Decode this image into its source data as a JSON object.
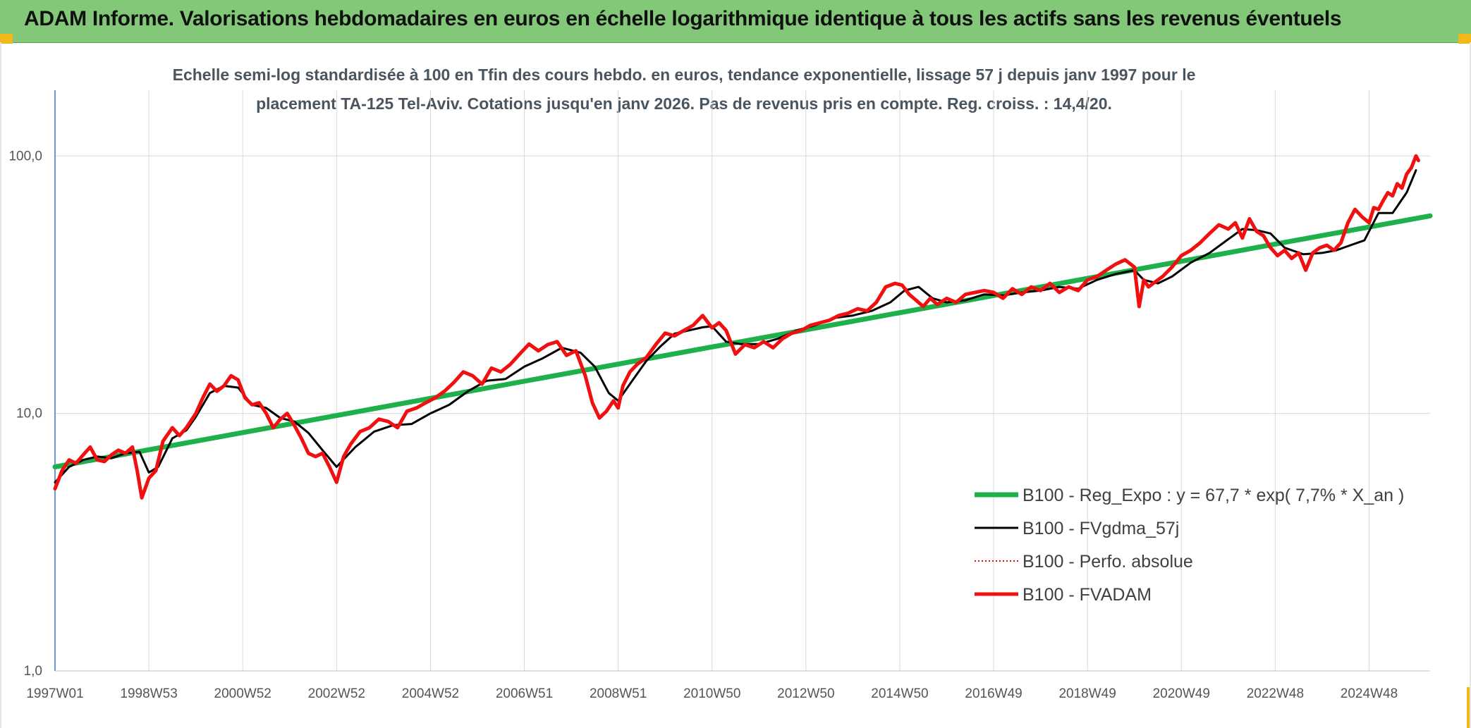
{
  "header": {
    "title": "ADAM Informe. Valorisations hebdomadaires en euros en échelle logarithmique identique à tous les actifs sans les revenus éventuels"
  },
  "colors": {
    "header_bg": "#82c878",
    "accent_corner": "#f2b81a",
    "regression": "#1eb04a",
    "smoothed": "#000000",
    "absolute": "#e01010",
    "fvadam": "#f01010",
    "grid": "#d9d9d9"
  },
  "chart_data": {
    "type": "line",
    "subtitle_lines": [
      "Echelle semi-log standardisée à 100 en Tfin des cours hebdo. en euros, tendance exponentielle, lissage 57 j depuis janv 1997 pour le",
      "placement TA-125 Tel-Aviv. Cotations jusqu'en janv 2026. Pas de revenus pris en compte. Reg. croiss. : 14,4/20."
    ],
    "y_scale": "log",
    "ylim": [
      1,
      180
    ],
    "xlim": [
      1997.0,
      2026.3
    ],
    "grid": true,
    "legend_placement": "bottom-right",
    "yticks": [
      {
        "value": 1,
        "label": "1,0"
      },
      {
        "value": 10,
        "label": "10,0"
      },
      {
        "value": 100,
        "label": "100,0"
      }
    ],
    "xticks": [
      {
        "value": 1997.0,
        "label": "1997W01"
      },
      {
        "value": 1999.0,
        "label": "1998W53"
      },
      {
        "value": 2001.0,
        "label": "2000W52"
      },
      {
        "value": 2003.0,
        "label": "2002W52"
      },
      {
        "value": 2005.0,
        "label": "2004W52"
      },
      {
        "value": 2007.0,
        "label": "2006W51"
      },
      {
        "value": 2009.0,
        "label": "2008W51"
      },
      {
        "value": 2011.0,
        "label": "2010W50"
      },
      {
        "value": 2013.0,
        "label": "2012W50"
      },
      {
        "value": 2015.0,
        "label": "2014W50"
      },
      {
        "value": 2017.0,
        "label": "2016W49"
      },
      {
        "value": 2019.0,
        "label": "2018W49"
      },
      {
        "value": 2021.0,
        "label": "2020W49"
      },
      {
        "value": 2023.0,
        "label": "2022W48"
      },
      {
        "value": 2025.0,
        "label": "2024W48"
      }
    ],
    "series": [
      {
        "name": "B100 - Reg_Expo : y = 67,7 * exp( 7,7% *  X_an )",
        "style": "regression",
        "x": [
          1997.0,
          2026.3
        ],
        "y": [
          6.2,
          58.5
        ]
      },
      {
        "name": "B100 - FVgdma_57j",
        "style": "smoothed",
        "x": [
          1997.0,
          1997.3,
          1997.6,
          1997.9,
          1998.2,
          1998.5,
          1998.8,
          1999.0,
          1999.2,
          1999.5,
          1999.8,
          2000.0,
          2000.3,
          2000.6,
          2000.9,
          2001.2,
          2001.5,
          2001.8,
          2002.1,
          2002.4,
          2002.7,
          2003.0,
          2003.4,
          2003.8,
          2004.2,
          2004.6,
          2005.0,
          2005.4,
          2005.8,
          2006.2,
          2006.6,
          2007.0,
          2007.4,
          2007.8,
          2008.2,
          2008.5,
          2008.8,
          2009.0,
          2009.3,
          2009.6,
          2009.9,
          2010.2,
          2010.5,
          2010.8,
          2011.0,
          2011.3,
          2011.6,
          2012.0,
          2012.4,
          2012.8,
          2013.2,
          2013.6,
          2014.0,
          2014.4,
          2014.8,
          2015.1,
          2015.4,
          2015.7,
          2016.0,
          2016.4,
          2016.8,
          2017.2,
          2017.6,
          2018.0,
          2018.4,
          2018.8,
          2019.2,
          2019.6,
          2020.0,
          2020.2,
          2020.5,
          2020.8,
          2021.2,
          2021.6,
          2022.0,
          2022.3,
          2022.6,
          2022.9,
          2023.2,
          2023.6,
          2024.0,
          2024.3,
          2024.6,
          2024.9,
          2025.2,
          2025.5,
          2025.8,
          2026.0
        ],
        "y": [
          5.4,
          6.2,
          6.6,
          6.8,
          6.7,
          7.0,
          7.1,
          5.9,
          6.2,
          8.0,
          8.6,
          9.7,
          12.0,
          12.8,
          12.6,
          10.8,
          10.5,
          9.6,
          9.3,
          8.4,
          7.2,
          6.2,
          7.4,
          8.5,
          9.0,
          9.1,
          10.0,
          10.8,
          12.2,
          13.4,
          13.6,
          15.2,
          16.4,
          18.0,
          17.2,
          15.2,
          12.0,
          11.2,
          13.4,
          16.0,
          18.2,
          20.4,
          21.0,
          21.6,
          21.8,
          19.0,
          18.6,
          18.6,
          19.5,
          21.0,
          22.0,
          23.5,
          24.0,
          25.0,
          27.0,
          30.0,
          31.0,
          28.0,
          27.0,
          27.5,
          29.0,
          28.7,
          29.5,
          30.0,
          31.0,
          30.5,
          33.0,
          34.8,
          36.0,
          33.0,
          32.0,
          34.0,
          38.5,
          42.0,
          47.5,
          52.0,
          51.5,
          50.0,
          44.0,
          41.5,
          42.0,
          43.0,
          45.0,
          47.0,
          60.0,
          60.0,
          72.0,
          88.0
        ]
      },
      {
        "name": "B100 - Perfo. absolue",
        "style": "dotted",
        "x": [],
        "y": []
      },
      {
        "name": "B100 - FVADAM",
        "style": "fvadam",
        "x": [
          1997.0,
          1997.15,
          1997.3,
          1997.45,
          1997.6,
          1997.75,
          1997.9,
          1998.05,
          1998.2,
          1998.35,
          1998.5,
          1998.65,
          1998.75,
          1998.85,
          1999.0,
          1999.15,
          1999.3,
          1999.5,
          1999.65,
          1999.8,
          2000.0,
          2000.15,
          2000.3,
          2000.45,
          2000.6,
          2000.75,
          2000.9,
          2001.05,
          2001.2,
          2001.35,
          2001.5,
          2001.65,
          2001.8,
          2001.95,
          2002.1,
          2002.25,
          2002.4,
          2002.55,
          2002.7,
          2002.85,
          2003.0,
          2003.15,
          2003.3,
          2003.5,
          2003.7,
          2003.9,
          2004.1,
          2004.3,
          2004.5,
          2004.7,
          2004.9,
          2005.1,
          2005.3,
          2005.5,
          2005.7,
          2005.9,
          2006.1,
          2006.3,
          2006.5,
          2006.7,
          2006.9,
          2007.1,
          2007.3,
          2007.5,
          2007.7,
          2007.9,
          2008.1,
          2008.3,
          2008.45,
          2008.6,
          2008.75,
          2008.9,
          2009.0,
          2009.1,
          2009.25,
          2009.4,
          2009.6,
          2009.8,
          2010.0,
          2010.2,
          2010.4,
          2010.6,
          2010.8,
          2011.0,
          2011.15,
          2011.3,
          2011.5,
          2011.7,
          2011.9,
          2012.1,
          2012.3,
          2012.5,
          2012.7,
          2012.9,
          2013.1,
          2013.3,
          2013.5,
          2013.7,
          2013.9,
          2014.1,
          2014.3,
          2014.5,
          2014.7,
          2014.9,
          2015.05,
          2015.2,
          2015.35,
          2015.5,
          2015.65,
          2015.8,
          2016.0,
          2016.2,
          2016.4,
          2016.6,
          2016.8,
          2017.0,
          2017.2,
          2017.4,
          2017.6,
          2017.8,
          2018.0,
          2018.2,
          2018.4,
          2018.6,
          2018.8,
          2019.0,
          2019.2,
          2019.4,
          2019.6,
          2019.8,
          2020.0,
          2020.1,
          2020.2,
          2020.3,
          2020.45,
          2020.6,
          2020.8,
          2021.0,
          2021.2,
          2021.4,
          2021.6,
          2021.8,
          2022.0,
          2022.15,
          2022.3,
          2022.45,
          2022.6,
          2022.75,
          2022.9,
          2023.05,
          2023.2,
          2023.35,
          2023.5,
          2023.65,
          2023.8,
          2023.95,
          2024.1,
          2024.25,
          2024.4,
          2024.55,
          2024.7,
          2024.85,
          2025.0,
          2025.1,
          2025.2,
          2025.3,
          2025.4,
          2025.5,
          2025.6,
          2025.7,
          2025.8,
          2025.9,
          2026.0,
          2026.05
        ],
        "y": [
          5.1,
          6.0,
          6.6,
          6.4,
          6.9,
          7.4,
          6.6,
          6.5,
          6.9,
          7.2,
          7.0,
          7.4,
          6.0,
          4.7,
          5.6,
          6.0,
          7.8,
          8.8,
          8.2,
          8.8,
          10.0,
          11.5,
          13.0,
          12.2,
          12.8,
          14.0,
          13.5,
          11.5,
          10.8,
          11.0,
          10.0,
          8.8,
          9.5,
          10.0,
          9.0,
          8.0,
          7.0,
          6.8,
          7.0,
          6.2,
          5.4,
          6.8,
          7.6,
          8.5,
          8.8,
          9.5,
          9.3,
          8.8,
          10.2,
          10.5,
          11.0,
          11.5,
          12.2,
          13.2,
          14.5,
          14.0,
          13.0,
          15.0,
          14.5,
          15.5,
          17.0,
          18.6,
          17.5,
          18.5,
          19.0,
          16.8,
          17.5,
          14.0,
          11.0,
          9.6,
          10.2,
          11.2,
          10.5,
          12.8,
          14.5,
          15.5,
          16.5,
          18.5,
          20.5,
          20.0,
          21.0,
          22.0,
          24.0,
          21.5,
          22.5,
          21.0,
          17.0,
          18.5,
          18.0,
          19.0,
          18.0,
          19.5,
          20.5,
          21.0,
          22.0,
          22.5,
          23.0,
          24.0,
          24.5,
          25.5,
          25.0,
          27.0,
          31.0,
          32.0,
          31.5,
          29.0,
          27.5,
          26.0,
          28.0,
          26.5,
          28.0,
          27.0,
          29.0,
          29.5,
          30.0,
          29.5,
          28.0,
          30.5,
          29.0,
          31.0,
          30.0,
          32.0,
          29.5,
          31.0,
          30.0,
          33.0,
          34.0,
          36.0,
          38.0,
          39.5,
          37.0,
          26.0,
          33.0,
          31.0,
          32.5,
          34.0,
          37.0,
          41.0,
          43.0,
          46.0,
          50.0,
          54.0,
          52.0,
          55.0,
          48.0,
          57.0,
          51.0,
          49.0,
          44.0,
          41.0,
          43.0,
          40.0,
          42.0,
          36.0,
          42.0,
          44.0,
          45.0,
          43.0,
          46.0,
          55.0,
          62.0,
          58.0,
          55.0,
          63.0,
          62.0,
          67.0,
          72.0,
          70.0,
          78.0,
          75.0,
          85.0,
          90.0,
          100.0,
          96.0
        ]
      }
    ]
  }
}
